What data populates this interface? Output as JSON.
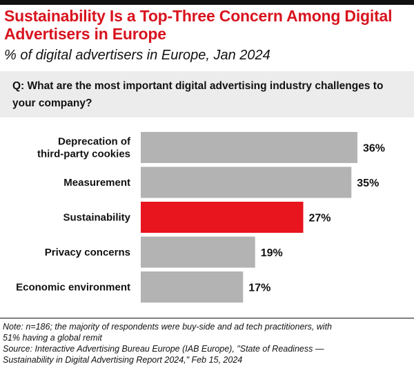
{
  "header": {
    "title": "Sustainability Is a Top-Three Concern Among Digital Advertisers in Europe",
    "subtitle": "% of digital advertisers in Europe, Jan 2024",
    "question": "Q: What are the most important digital advertising industry challenges to your company?"
  },
  "colors": {
    "bar": "#b3b3b3",
    "highlight": "#e8141e",
    "title": "#d8131e"
  },
  "chart_data": {
    "type": "bar",
    "orientation": "horizontal",
    "title": "Sustainability Is a Top-Three Concern Among Digital Advertisers in Europe",
    "xlabel": "",
    "ylabel": "",
    "xlim": [
      0,
      36
    ],
    "categories": [
      [
        "Deprecation of",
        "third-party cookies"
      ],
      [
        "Measurement"
      ],
      [
        "Sustainability"
      ],
      [
        "Privacy concerns"
      ],
      [
        "Economic environment"
      ]
    ],
    "values": [
      36,
      35,
      27,
      19,
      17
    ],
    "value_labels": [
      "36%",
      "35%",
      "27%",
      "19%",
      "17%"
    ],
    "highlight_index": 2
  },
  "footer": {
    "note_lines": [
      "Note: n=186; the majority of respondents were buy-side and ad tech practitioners, with",
      "51% having a global remit",
      "Source: Interactive Advertising Bureau Europe (IAB Europe), \"State of Readiness —",
      "Sustainability in Digital Advertising Report 2024,\" Feb 15, 2024"
    ]
  }
}
